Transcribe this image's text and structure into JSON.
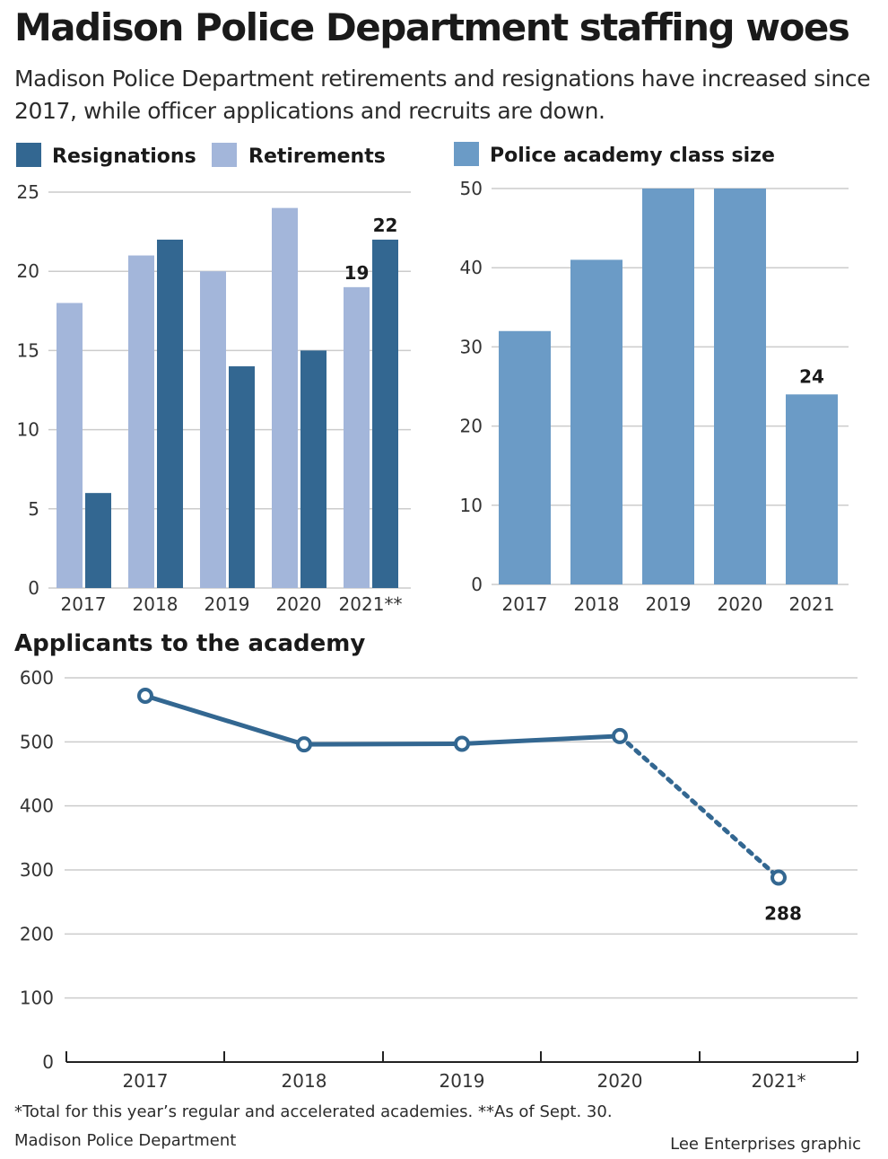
{
  "title": "Madison Police Department staffing woes",
  "subtitle": "Madison Police Department retirements and resignations have increased since 2017, while officer applications and recruits are down.",
  "colors": {
    "resignations": "#336791",
    "retirements": "#a3b6da",
    "academy": "#6b9bc6",
    "applicants": "#336791"
  },
  "chart_data": [
    {
      "type": "bar",
      "title": "",
      "categories": [
        "2017",
        "2018",
        "2019",
        "2020",
        "2021**"
      ],
      "series": [
        {
          "name": "Retirements",
          "values": [
            18,
            21,
            20,
            24,
            19
          ]
        },
        {
          "name": "Resignations",
          "values": [
            6,
            22,
            14,
            15,
            22
          ]
        }
      ],
      "yticks": [
        "0",
        "5",
        "10",
        "15",
        "20",
        "25"
      ],
      "ylim": [
        0,
        25
      ],
      "grid": true,
      "legend": "top",
      "data_labels": [
        {
          "series": "Retirements",
          "category": "2021**",
          "text": "19"
        },
        {
          "series": "Resignations",
          "category": "2021**",
          "text": "22"
        }
      ]
    },
    {
      "type": "bar",
      "title": "",
      "categories": [
        "2017",
        "2018",
        "2019",
        "2020",
        "2021"
      ],
      "series": [
        {
          "name": "Police academy class size",
          "values": [
            32,
            41,
            50,
            50,
            24
          ]
        }
      ],
      "yticks": [
        "0",
        "10",
        "20",
        "30",
        "40",
        "50"
      ],
      "ylim": [
        0,
        50
      ],
      "grid": true,
      "legend": "top",
      "data_labels": [
        {
          "series": "Police academy class size",
          "category": "2021",
          "text": "24"
        }
      ]
    },
    {
      "type": "line",
      "title": "Applicants to the academy",
      "categories": [
        "2017",
        "2018",
        "2019",
        "2020",
        "2021*"
      ],
      "values": [
        572,
        496,
        497,
        509,
        288
      ],
      "dashed_segment_from": "2020",
      "yticks": [
        "0",
        "100",
        "200",
        "300",
        "400",
        "500",
        "600"
      ],
      "ylim": [
        0,
        600
      ],
      "grid": true,
      "data_labels": [
        {
          "category": "2021*",
          "text": "288"
        }
      ]
    }
  ],
  "footnote": "*Total for this year’s regular and accelerated academies.   **As of Sept. 30.",
  "source": "Madison Police Department",
  "credit": "Lee Enterprises graphic"
}
